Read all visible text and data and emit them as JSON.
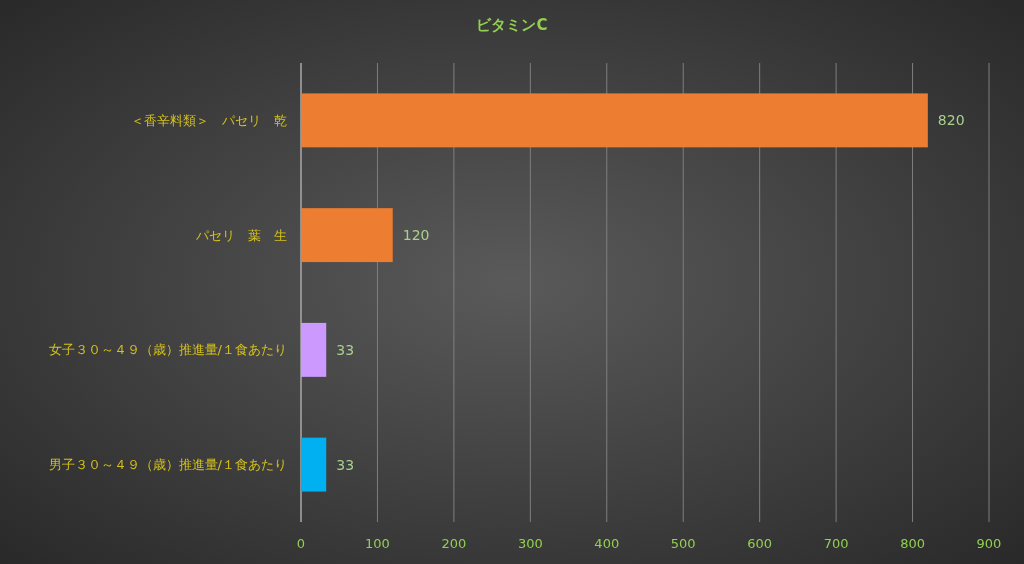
{
  "chart_data": {
    "type": "bar",
    "orientation": "horizontal",
    "title": "ビタミンC",
    "categories": [
      "＜香辛料類＞　パセリ　乾",
      "パセリ　葉　生",
      "女子３０～４９（歳）推進量/１食あたり",
      "男子３０～４９（歳）推進量/１食あたり"
    ],
    "values": [
      820,
      120,
      33,
      33
    ],
    "colors": [
      "#ed7d31",
      "#ed7d31",
      "#cc99ff",
      "#00b0f0"
    ],
    "xlim": [
      0,
      900
    ],
    "xticks": [
      0,
      100,
      200,
      300,
      400,
      500,
      600,
      700,
      800,
      900
    ],
    "grid": "x",
    "data_labels": true
  }
}
